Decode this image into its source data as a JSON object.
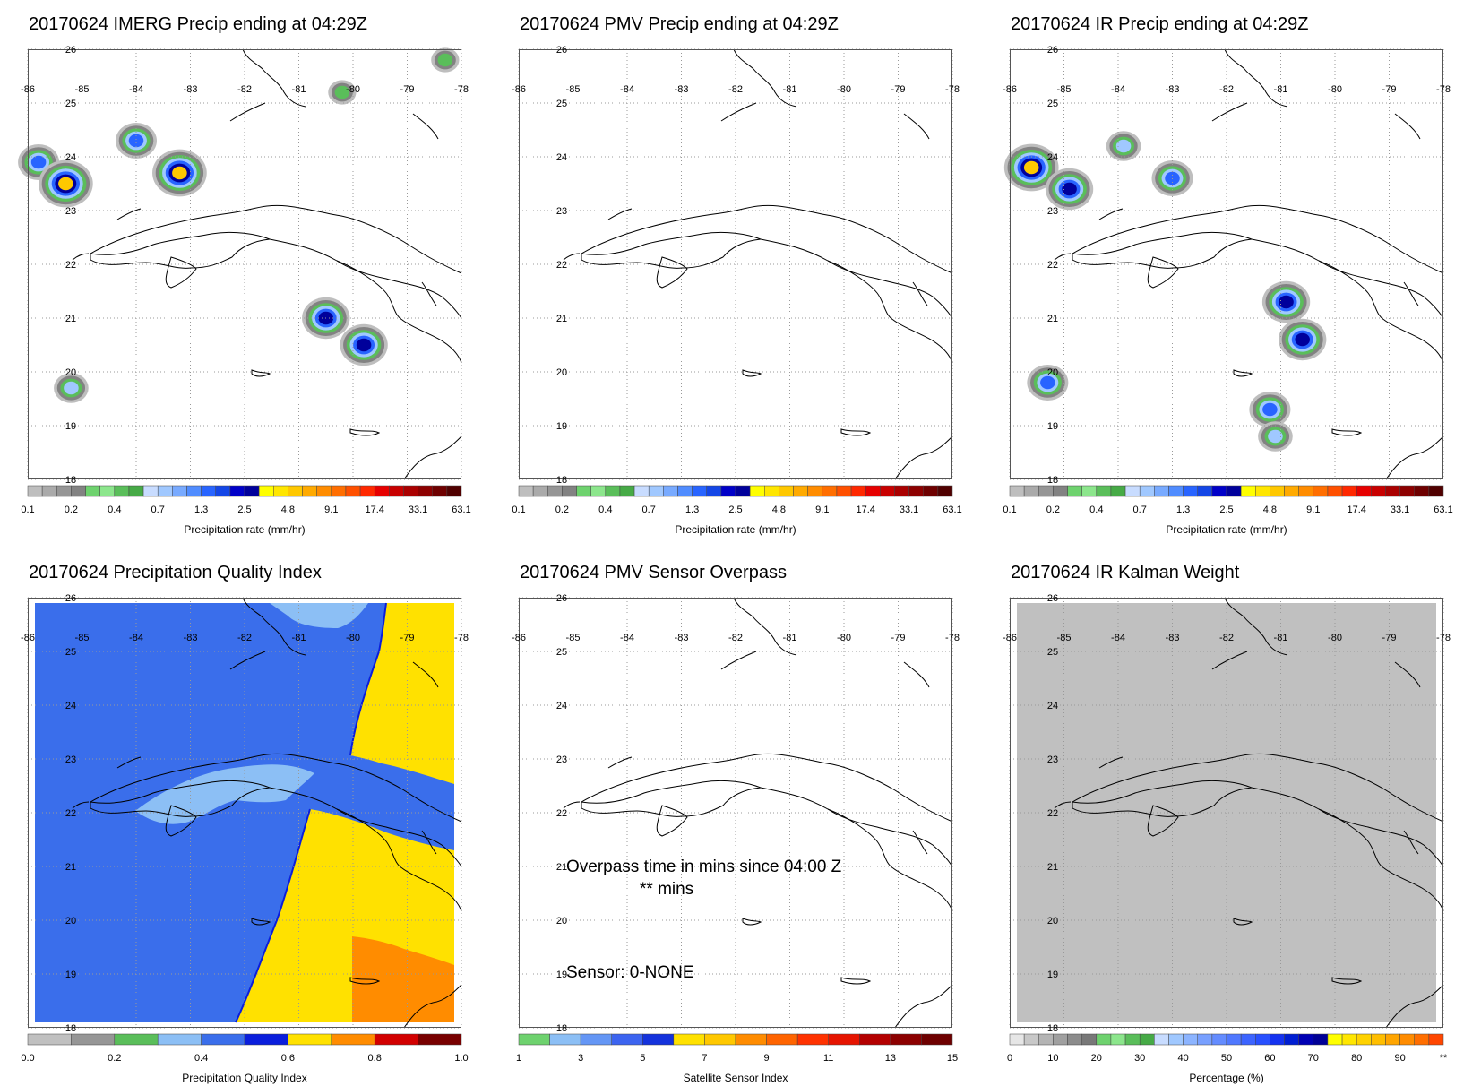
{
  "chart_data": [
    {
      "type": "heatmap",
      "title": "20170624 IMERG Precip ending at 04:29Z",
      "colorbar_label": "Precipitation rate (mm/hr)",
      "colorbar_ticks": [
        "0.1",
        "0.2",
        "0.4",
        "0.7",
        "1.3",
        "2.5",
        "4.8",
        "9.1",
        "17.4",
        "33.1",
        "63.1"
      ],
      "lon_labels": [
        "-86",
        "-85",
        "-84",
        "-83",
        "-82",
        "-81",
        "-80",
        "-79",
        "-78"
      ],
      "lat_labels": [
        "26",
        "25",
        "24",
        "23",
        "22",
        "21",
        "20",
        "19",
        "18"
      ],
      "xlim": [
        -86,
        -78
      ],
      "ylim": [
        18,
        26
      ],
      "precip_cells": [
        {
          "lon": -85.8,
          "lat": 23.9,
          "value": 2.0
        },
        {
          "lon": -85.3,
          "lat": 23.5,
          "value": 9.0
        },
        {
          "lon": -84.0,
          "lat": 24.3,
          "value": 1.3
        },
        {
          "lon": -83.2,
          "lat": 23.7,
          "value": 9.0
        },
        {
          "lon": -80.2,
          "lat": 25.2,
          "value": 0.4
        },
        {
          "lon": -80.5,
          "lat": 21.0,
          "value": 2.5
        },
        {
          "lon": -79.8,
          "lat": 20.5,
          "value": 2.5
        },
        {
          "lon": -85.2,
          "lat": 19.7,
          "value": 1.0
        },
        {
          "lon": -78.3,
          "lat": 25.8,
          "value": 0.4
        }
      ]
    },
    {
      "type": "heatmap",
      "title": "20170624 PMV Precip ending at 04:29Z",
      "colorbar_label": "Precipitation rate (mm/hr)",
      "colorbar_ticks": [
        "0.1",
        "0.2",
        "0.4",
        "0.7",
        "1.3",
        "2.5",
        "4.8",
        "9.1",
        "17.4",
        "33.1",
        "63.1"
      ],
      "lon_labels": [
        "-86",
        "-85",
        "-84",
        "-83",
        "-82",
        "-81",
        "-80",
        "-79",
        "-78"
      ],
      "lat_labels": [
        "26",
        "25",
        "24",
        "23",
        "22",
        "21",
        "20",
        "19",
        "18"
      ],
      "xlim": [
        -86,
        -78
      ],
      "ylim": [
        18,
        26
      ],
      "precip_cells": []
    },
    {
      "type": "heatmap",
      "title": "20170624 IR Precip ending at 04:29Z",
      "colorbar_label": "Precipitation rate (mm/hr)",
      "colorbar_ticks": [
        "0.1",
        "0.2",
        "0.4",
        "0.7",
        "1.3",
        "2.5",
        "4.8",
        "9.1",
        "17.4",
        "33.1",
        "63.1"
      ],
      "lon_labels": [
        "-86",
        "-85",
        "-84",
        "-83",
        "-82",
        "-81",
        "-80",
        "-79",
        "-78"
      ],
      "lat_labels": [
        "26",
        "25",
        "24",
        "23",
        "22",
        "21",
        "20",
        "19",
        "18"
      ],
      "xlim": [
        -86,
        -78
      ],
      "ylim": [
        18,
        26
      ],
      "precip_cells": [
        {
          "lon": -85.6,
          "lat": 23.8,
          "value": 9.0
        },
        {
          "lon": -84.9,
          "lat": 23.4,
          "value": 2.5
        },
        {
          "lon": -83.9,
          "lat": 24.2,
          "value": 1.0
        },
        {
          "lon": -83.0,
          "lat": 23.6,
          "value": 1.3
        },
        {
          "lon": -80.9,
          "lat": 21.3,
          "value": 2.5
        },
        {
          "lon": -80.6,
          "lat": 20.6,
          "value": 2.5
        },
        {
          "lon": -85.3,
          "lat": 19.8,
          "value": 1.3
        },
        {
          "lon": -81.2,
          "lat": 19.3,
          "value": 1.3
        },
        {
          "lon": -81.1,
          "lat": 18.8,
          "value": 1.0
        }
      ]
    },
    {
      "type": "heatmap",
      "title": "20170624 Precipitation Quality Index",
      "colorbar_label": "Precipitation Quality Index",
      "colorbar_ticks": [
        "0.0",
        "0.2",
        "0.4",
        "0.6",
        "0.8",
        "1.0"
      ],
      "lon_labels": [
        "-86",
        "-85",
        "-84",
        "-83",
        "-82",
        "-81",
        "-80",
        "-79",
        "-78"
      ],
      "lat_labels": [
        "26",
        "25",
        "24",
        "23",
        "22",
        "21",
        "20",
        "19",
        "18"
      ],
      "xlim": [
        -86,
        -78
      ],
      "ylim": [
        18,
        26
      ],
      "regions": [
        {
          "name_value": 0.45,
          "color": "#3a6eeb"
        },
        {
          "name_value": 0.35,
          "color": "#8cbff5"
        },
        {
          "name_value": 0.65,
          "color": "#ffe100"
        },
        {
          "name_value": 0.75,
          "color": "#ff8c00"
        }
      ]
    },
    {
      "type": "heatmap",
      "title": "20170624 PMV Sensor Overpass",
      "colorbar_label": "Satellite Sensor Index",
      "colorbar_ticks": [
        "1",
        "3",
        "5",
        "7",
        "9",
        "11",
        "13",
        "15"
      ],
      "lon_labels": [
        "-86",
        "-85",
        "-84",
        "-83",
        "-82",
        "-81",
        "-80",
        "-79",
        "-78"
      ],
      "lat_labels": [
        "26",
        "25",
        "24",
        "23",
        "22",
        "21",
        "20",
        "19",
        "18"
      ],
      "xlim": [
        -86,
        -78
      ],
      "ylim": [
        18,
        26
      ],
      "annotations": {
        "overpass": "Overpass time in mins since 04:00 Z",
        "mins": "** mins",
        "sensor": "Sensor:   0-NONE"
      }
    },
    {
      "type": "heatmap",
      "title": "20170624 IR Kalman Weight",
      "colorbar_label": "Percentage (%)",
      "colorbar_ticks": [
        "0",
        "10",
        "20",
        "30",
        "40",
        "50",
        "60",
        "70",
        "80",
        "90",
        "**"
      ],
      "lon_labels": [
        "-86",
        "-85",
        "-84",
        "-83",
        "-82",
        "-81",
        "-80",
        "-79",
        "-78"
      ],
      "lat_labels": [
        "26",
        "25",
        "24",
        "23",
        "22",
        "21",
        "20",
        "19",
        "18"
      ],
      "xlim": [
        -86,
        -78
      ],
      "ylim": [
        18,
        26
      ],
      "field_value": 5
    }
  ],
  "colors": {
    "precip_scale": [
      "#bebebe",
      "#aaaaaa",
      "#969696",
      "#828282",
      "#6ed26e",
      "#8ce68c",
      "#5abe5a",
      "#46aa46",
      "#c8dcff",
      "#a0c8ff",
      "#78aaff",
      "#508cff",
      "#2864ff",
      "#1446e6",
      "#0000c8",
      "#00009b",
      "#ffff00",
      "#ffe600",
      "#ffc800",
      "#ffaa00",
      "#ff8c00",
      "#ff6e00",
      "#ff5000",
      "#ff2800",
      "#e60000",
      "#c80000",
      "#aa0000",
      "#8c0000",
      "#6e0000",
      "#500000"
    ],
    "quality_scale": [
      "#c0c0c0",
      "#969696",
      "#5abe5a",
      "#8cbff5",
      "#3a6eeb",
      "#0a1edc",
      "#ffe100",
      "#ff8c00",
      "#d20000",
      "#780000"
    ],
    "sensor_scale": [
      "#6ed26e",
      "#8cbff5",
      "#6496f5",
      "#3c64f0",
      "#1432dc",
      "#ffe100",
      "#ffc800",
      "#ff8c00",
      "#ff6400",
      "#ff3200",
      "#e61400",
      "#b40000",
      "#8c0000",
      "#6e0000"
    ],
    "kalman_scale": [
      "#e6e6e6",
      "#c8c8c8",
      "#b4b4b4",
      "#a0a0a0",
      "#8c8c8c",
      "#787878",
      "#6ed26e",
      "#8ce68c",
      "#5abe5a",
      "#46aa46",
      "#c8dcff",
      "#a0c8ff",
      "#8cb4ff",
      "#78a0ff",
      "#648cff",
      "#5078ff",
      "#3c64ff",
      "#2850ff",
      "#1432f0",
      "#001ed2",
      "#0000b4",
      "#000096",
      "#ffff00",
      "#ffe600",
      "#ffd200",
      "#ffbe00",
      "#ffa500",
      "#ff8c00",
      "#ff6e00",
      "#ff4600"
    ]
  }
}
